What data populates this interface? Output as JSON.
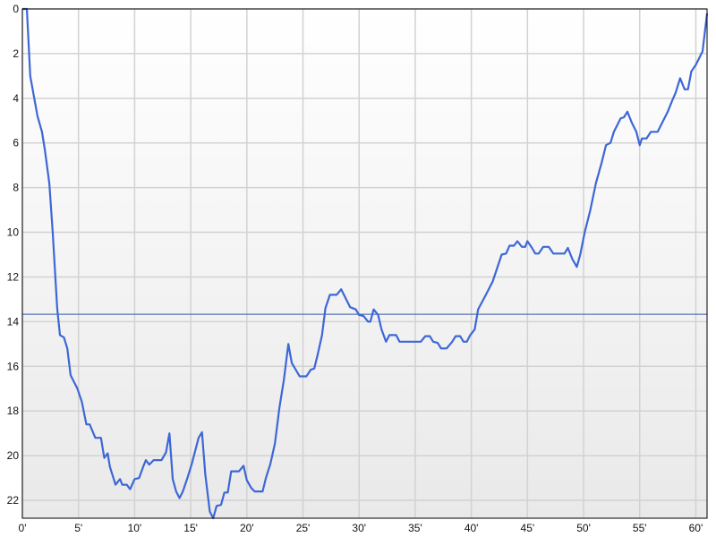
{
  "chart_data": {
    "type": "line",
    "title": "",
    "xlabel": "",
    "ylabel": "",
    "xlim": [
      0,
      61
    ],
    "ylim": [
      0,
      22.8
    ],
    "y_inverted": true,
    "grid": true,
    "x_ticks": [
      0,
      5,
      10,
      15,
      20,
      25,
      30,
      35,
      40,
      45,
      50,
      55,
      60
    ],
    "x_tick_labels": [
      "0'",
      "5'",
      "10'",
      "15'",
      "20'",
      "25'",
      "30'",
      "35'",
      "40'",
      "45'",
      "50'",
      "55'",
      "60'"
    ],
    "y_ticks": [
      0,
      2,
      4,
      6,
      8,
      10,
      12,
      14,
      16,
      18,
      20,
      22
    ],
    "y_tick_labels": [
      "0",
      "2",
      "4",
      "6",
      "8",
      "10",
      "12",
      "14",
      "16",
      "18",
      "20",
      "22"
    ],
    "reference_line": {
      "y": 13.67,
      "color": "#3355aa"
    },
    "series": [
      {
        "color": "#3d67d6",
        "x": [
          0,
          0.4,
          0.7,
          1.35,
          1.75,
          2.0,
          2.4,
          2.7,
          3.1,
          3.35,
          3.7,
          4.0,
          4.3,
          4.9,
          5.3,
          5.7,
          6.0,
          6.5,
          7.0,
          7.3,
          7.6,
          7.8,
          8.3,
          8.7,
          8.9,
          9.3,
          9.6,
          10.0,
          10.4,
          10.8,
          11.0,
          11.3,
          11.7,
          12.4,
          12.8,
          13.1,
          13.4,
          13.7,
          14.0,
          14.3,
          14.7,
          15.1,
          15.7,
          16.0,
          16.3,
          16.7,
          17.0,
          17.3,
          17.7,
          18.0,
          18.3,
          18.6,
          19.3,
          19.7,
          20.0,
          20.4,
          20.7,
          21.4,
          21.7,
          22.1,
          22.5,
          22.9,
          23.3,
          23.7,
          24.0,
          24.3,
          24.7,
          25.3,
          25.7,
          26.0,
          26.3,
          26.7,
          27.0,
          27.4,
          28.0,
          28.4,
          28.8,
          29.2,
          29.7,
          30.0,
          30.4,
          30.8,
          31.0,
          31.3,
          31.7,
          32.0,
          32.4,
          32.7,
          33.3,
          33.6,
          35.5,
          35.9,
          36.3,
          36.6,
          37.0,
          37.3,
          37.8,
          38.3,
          38.6,
          39.0,
          39.3,
          39.6,
          39.9,
          40.3,
          40.6,
          41.3,
          41.9,
          42.3,
          42.7,
          43.1,
          43.4,
          43.8,
          44.1,
          44.5,
          44.8,
          45.0,
          45.4,
          45.7,
          46.0,
          46.4,
          46.9,
          47.3,
          48.3,
          48.6,
          49.0,
          49.4,
          49.7,
          50.1,
          50.6,
          51.1,
          51.6,
          52.0,
          52.4,
          52.7,
          53.0,
          53.3,
          53.6,
          53.9,
          54.3,
          54.7,
          55.0,
          55.2,
          55.6,
          56.0,
          56.6,
          57.0,
          57.5,
          57.9,
          58.2,
          58.6,
          59.0,
          59.3,
          59.6,
          60.0,
          60.6,
          61.0
        ],
        "y": [
          0,
          0,
          3.0,
          4.8,
          5.5,
          6.3,
          7.8,
          10.0,
          13.4,
          14.6,
          14.7,
          15.2,
          16.4,
          17.0,
          17.6,
          18.6,
          18.6,
          19.2,
          19.2,
          20.1,
          19.9,
          20.5,
          21.3,
          21.05,
          21.3,
          21.3,
          21.5,
          21.05,
          21.0,
          20.45,
          20.2,
          20.4,
          20.2,
          20.2,
          19.85,
          19.0,
          21.05,
          21.6,
          21.9,
          21.6,
          21.0,
          20.35,
          19.2,
          18.95,
          20.85,
          22.5,
          22.8,
          22.25,
          22.2,
          21.65,
          21.65,
          20.7,
          20.7,
          20.45,
          21.1,
          21.45,
          21.6,
          21.6,
          21.0,
          20.35,
          19.45,
          17.85,
          16.6,
          15.0,
          15.85,
          16.1,
          16.45,
          16.45,
          16.15,
          16.1,
          15.5,
          14.6,
          13.4,
          12.8,
          12.8,
          12.55,
          12.95,
          13.35,
          13.45,
          13.7,
          13.75,
          14.0,
          14.0,
          13.45,
          13.7,
          14.35,
          14.9,
          14.6,
          14.6,
          14.9,
          14.9,
          14.65,
          14.65,
          14.9,
          14.95,
          15.2,
          15.2,
          14.9,
          14.65,
          14.65,
          14.9,
          14.9,
          14.6,
          14.35,
          13.45,
          12.8,
          12.2,
          11.6,
          11.0,
          10.95,
          10.6,
          10.6,
          10.4,
          10.65,
          10.65,
          10.4,
          10.7,
          10.95,
          10.95,
          10.65,
          10.65,
          10.95,
          10.95,
          10.7,
          11.2,
          11.55,
          11.0,
          10.0,
          9.0,
          7.8,
          6.9,
          6.1,
          6.0,
          5.5,
          5.2,
          4.9,
          4.85,
          4.6,
          5.1,
          5.5,
          6.1,
          5.8,
          5.8,
          5.5,
          5.5,
          5.1,
          4.6,
          4.1,
          3.75,
          3.1,
          3.6,
          3.6,
          2.8,
          2.5,
          1.9,
          0.2
        ]
      }
    ]
  }
}
